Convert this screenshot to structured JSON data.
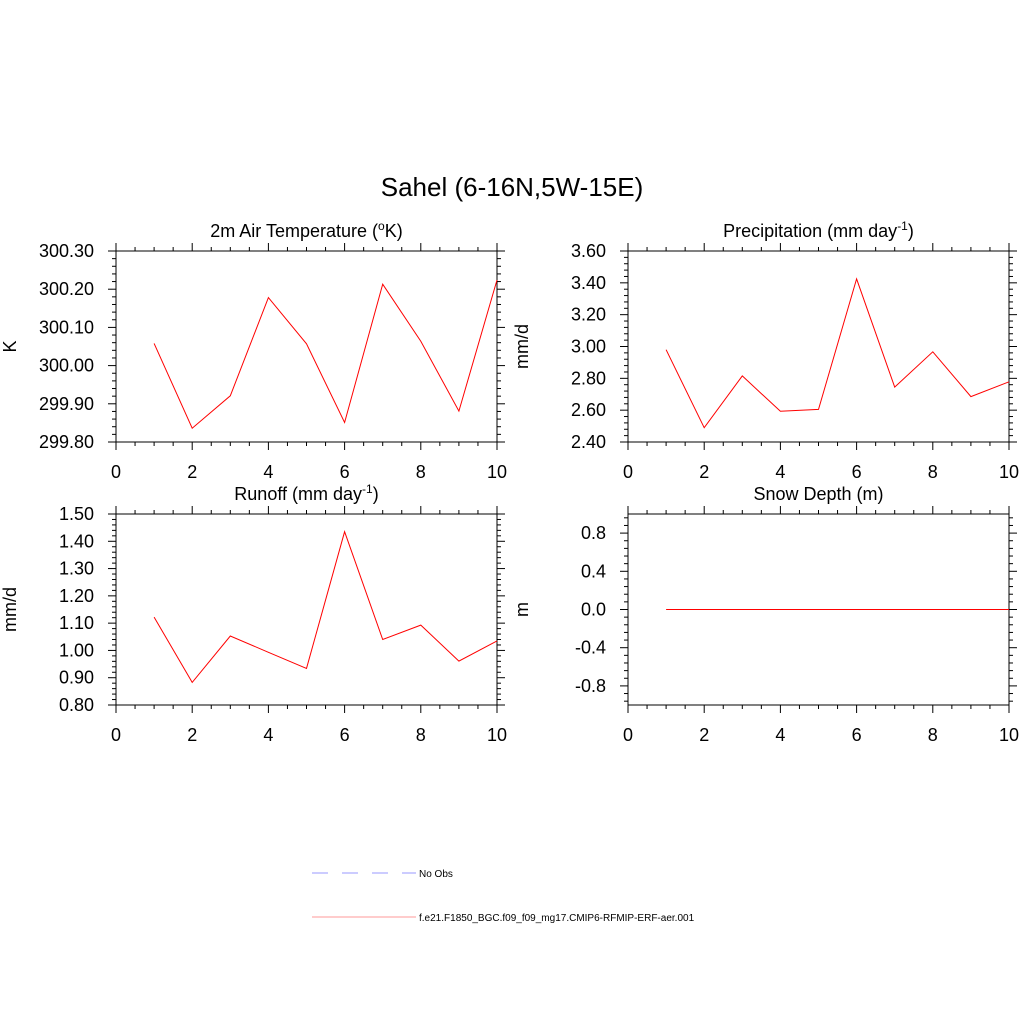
{
  "figure": {
    "title": "Sahel (6-16N,5W-15E)"
  },
  "colors": {
    "model": "#ff0000",
    "obs": "#9999ff"
  },
  "legend": {
    "items": [
      {
        "label": "No Obs",
        "style": "dashed",
        "color": "#9999ff"
      },
      {
        "label": "f.e21.F1850_BGC.f09_f09_mg17.CMIP6-RFMIP-ERF-aer.001",
        "style": "solid",
        "color": "#ff9999"
      }
    ]
  },
  "chart_data": [
    {
      "type": "line",
      "title": "2m Air Temperature (°K)",
      "title_parts": {
        "pre": "2m Air Temperature (",
        "sup": "o",
        "post": "K)"
      },
      "ylabel": "K",
      "xlim": [
        0,
        10
      ],
      "ylim": [
        299.8,
        300.3
      ],
      "xticks": [
        "0",
        "2",
        "4",
        "6",
        "8",
        "10"
      ],
      "yticks": [
        "299.80",
        "299.90",
        "300.00",
        "300.10",
        "300.20",
        "300.30"
      ],
      "x": [
        1,
        2,
        3,
        4,
        5,
        6,
        7,
        8,
        9,
        10
      ],
      "series": [
        {
          "values": [
            300.058,
            299.836,
            299.921,
            300.178,
            300.057,
            299.851,
            300.213,
            300.064,
            299.881,
            300.224
          ]
        }
      ]
    },
    {
      "type": "line",
      "title": "Precipitation (mm day-1)",
      "title_parts": {
        "pre": "Precipitation (mm day",
        "sup": "-1",
        "post": ")"
      },
      "ylabel": "mm/d",
      "xlim": [
        0,
        10
      ],
      "ylim": [
        2.4,
        3.6
      ],
      "xticks": [
        "0",
        "2",
        "4",
        "6",
        "8",
        "10"
      ],
      "yticks": [
        "2.40",
        "2.60",
        "2.80",
        "3.00",
        "3.20",
        "3.40",
        "3.60"
      ],
      "x": [
        1,
        2,
        3,
        4,
        5,
        6,
        7,
        8,
        9,
        10
      ],
      "series": [
        {
          "values": [
            2.98,
            2.49,
            2.815,
            2.593,
            2.605,
            3.425,
            2.745,
            2.967,
            2.685,
            2.778
          ]
        }
      ]
    },
    {
      "type": "line",
      "title": "Runoff (mm day-1)",
      "title_parts": {
        "pre": "Runoff (mm day",
        "sup": "-1",
        "post": ")"
      },
      "ylabel": "mm/d",
      "xlim": [
        0,
        10
      ],
      "ylim": [
        0.8,
        1.5
      ],
      "xticks": [
        "0",
        "2",
        "4",
        "6",
        "8",
        "10"
      ],
      "yticks": [
        "0.80",
        "0.90",
        "1.00",
        "1.10",
        "1.20",
        "1.30",
        "1.40",
        "1.50"
      ],
      "x": [
        1,
        2,
        3,
        4,
        5,
        6,
        7,
        8,
        9,
        10
      ],
      "series": [
        {
          "values": [
            1.122,
            0.883,
            1.053,
            0.993,
            0.934,
            1.435,
            1.04,
            1.093,
            0.961,
            1.035
          ]
        }
      ]
    },
    {
      "type": "line",
      "title": "Snow Depth (m)",
      "title_parts": {
        "pre": "Snow Depth (m)",
        "sup": "",
        "post": ""
      },
      "ylabel": "m",
      "xlim": [
        0,
        10
      ],
      "ylim": [
        -1.0,
        1.0
      ],
      "xticks": [
        "0",
        "2",
        "4",
        "6",
        "8",
        "10"
      ],
      "yticks": [
        "-0.8",
        "-0.4",
        "0.0",
        "0.4",
        "0.8"
      ],
      "ytick_values": [
        -0.8,
        -0.4,
        0.0,
        0.4,
        0.8
      ],
      "x": [
        1,
        2,
        3,
        4,
        5,
        6,
        7,
        8,
        9,
        10
      ],
      "series": [
        {
          "values": [
            0,
            0,
            0,
            0,
            0,
            0,
            0,
            0,
            0,
            0
          ]
        }
      ]
    }
  ]
}
